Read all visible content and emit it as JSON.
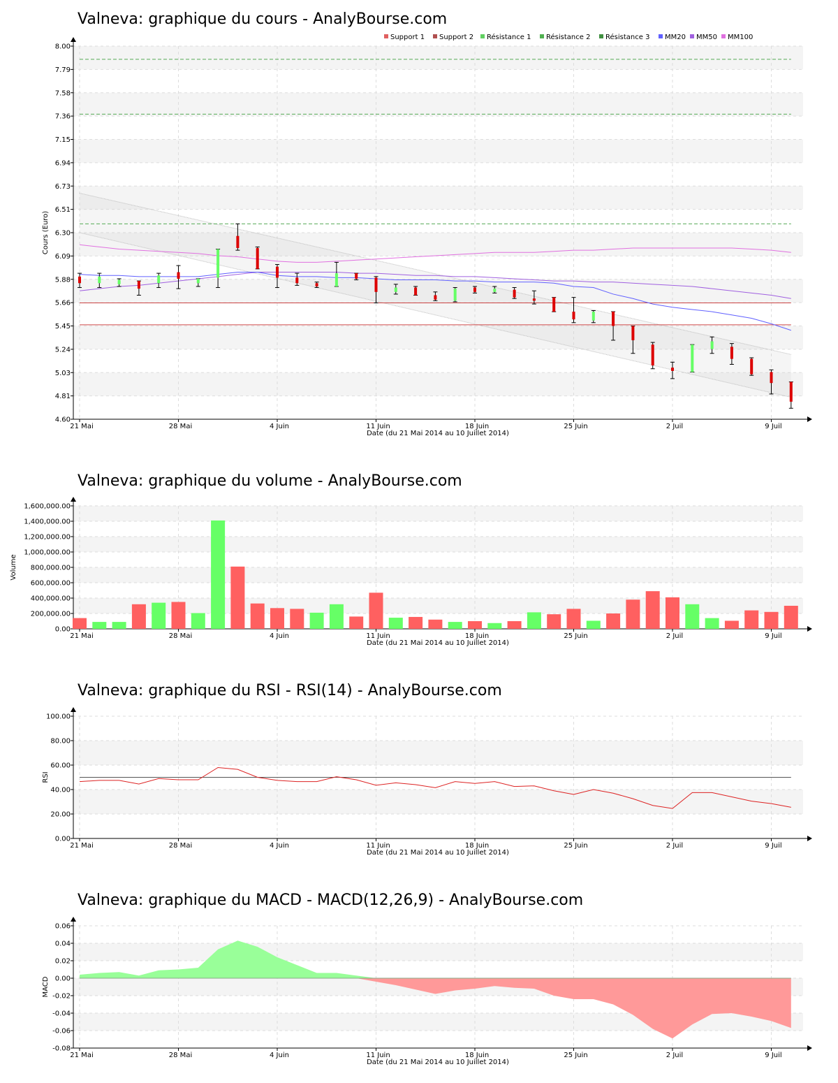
{
  "chart_data": [
    {
      "id": "price",
      "type": "candlestick",
      "title": "Valneva: graphique du cours - AnalyBourse.com",
      "ylabel": "Cours (Euro)",
      "xlabel": "Date (du 21 Mai 2014 au 10 Juillet 2014)",
      "ylim": [
        4.6,
        8.0
      ],
      "yticks": [
        "4.60",
        "4.81",
        "5.03",
        "5.24",
        "5.45",
        "5.66",
        "5.88",
        "6.09",
        "6.30",
        "6.51",
        "6.73",
        "6.94",
        "7.15",
        "7.36",
        "7.58",
        "7.79",
        "8.00"
      ],
      "xticks": [
        {
          "label": "21 Mai",
          "i": 0
        },
        {
          "label": "28 Mai",
          "i": 5
        },
        {
          "label": "4 Juin",
          "i": 10
        },
        {
          "label": "11 Juin",
          "i": 15
        },
        {
          "label": "18 Juin",
          "i": 20
        },
        {
          "label": "25 Juin",
          "i": 25
        },
        {
          "label": "2 Juil",
          "i": 30
        },
        {
          "label": "9 Juil",
          "i": 35
        }
      ],
      "grid": true,
      "legend_position": "top-right",
      "legend": [
        {
          "name": "Support 1",
          "color": "#e06060"
        },
        {
          "name": "Support 2",
          "color": "#b05050"
        },
        {
          "name": "Résistance 1",
          "color": "#60d060"
        },
        {
          "name": "Résistance 2",
          "color": "#50b050"
        },
        {
          "name": "Résistance 3",
          "color": "#409040"
        },
        {
          "name": "MM20",
          "color": "#6060ff"
        },
        {
          "name": "MM50",
          "color": "#a060e0"
        },
        {
          "name": "MM100",
          "color": "#e070e0"
        }
      ],
      "candles": [
        {
          "o": 5.9,
          "c": 5.84,
          "h": 5.93,
          "l": 5.8
        },
        {
          "o": 5.84,
          "c": 5.9,
          "h": 5.93,
          "l": 5.8
        },
        {
          "o": 5.83,
          "c": 5.87,
          "h": 5.88,
          "l": 5.81
        },
        {
          "o": 5.86,
          "c": 5.79,
          "h": 5.86,
          "l": 5.73
        },
        {
          "o": 5.84,
          "c": 5.91,
          "h": 5.93,
          "l": 5.8
        },
        {
          "o": 5.94,
          "c": 5.88,
          "h": 6.0,
          "l": 5.79
        },
        {
          "o": 5.84,
          "c": 5.88,
          "h": 5.88,
          "l": 5.81
        },
        {
          "o": 5.89,
          "c": 6.15,
          "h": 6.15,
          "l": 5.8
        },
        {
          "o": 6.27,
          "c": 6.16,
          "h": 6.38,
          "l": 6.14
        },
        {
          "o": 6.16,
          "c": 5.97,
          "h": 6.17,
          "l": 5.97
        },
        {
          "o": 5.99,
          "c": 5.89,
          "h": 6.01,
          "l": 5.8
        },
        {
          "o": 5.89,
          "c": 5.84,
          "h": 5.93,
          "l": 5.82
        },
        {
          "o": 5.84,
          "c": 5.81,
          "h": 5.85,
          "l": 5.8
        },
        {
          "o": 5.81,
          "c": 5.93,
          "h": 6.03,
          "l": 5.81
        },
        {
          "o": 5.93,
          "c": 5.88,
          "h": 5.93,
          "l": 5.87
        },
        {
          "o": 5.89,
          "c": 5.76,
          "h": 5.9,
          "l": 5.66
        },
        {
          "o": 5.76,
          "c": 5.8,
          "h": 5.83,
          "l": 5.74
        },
        {
          "o": 5.8,
          "c": 5.73,
          "h": 5.81,
          "l": 5.73
        },
        {
          "o": 5.73,
          "c": 5.69,
          "h": 5.76,
          "l": 5.68
        },
        {
          "o": 5.68,
          "c": 5.79,
          "h": 5.8,
          "l": 5.67
        },
        {
          "o": 5.8,
          "c": 5.76,
          "h": 5.81,
          "l": 5.75
        },
        {
          "o": 5.76,
          "c": 5.79,
          "h": 5.81,
          "l": 5.75
        },
        {
          "o": 5.78,
          "c": 5.71,
          "h": 5.8,
          "l": 5.7
        },
        {
          "o": 5.7,
          "c": 5.68,
          "h": 5.77,
          "l": 5.65
        },
        {
          "o": 5.71,
          "c": 5.58,
          "h": 5.71,
          "l": 5.58
        },
        {
          "o": 5.58,
          "c": 5.51,
          "h": 5.71,
          "l": 5.48
        },
        {
          "o": 5.5,
          "c": 5.58,
          "h": 5.59,
          "l": 5.48
        },
        {
          "o": 5.58,
          "c": 5.45,
          "h": 5.58,
          "l": 5.32
        },
        {
          "o": 5.45,
          "c": 5.32,
          "h": 5.45,
          "l": 5.2
        },
        {
          "o": 5.28,
          "c": 5.09,
          "h": 5.3,
          "l": 5.06
        },
        {
          "o": 5.07,
          "c": 5.04,
          "h": 5.12,
          "l": 4.97
        },
        {
          "o": 5.03,
          "c": 5.28,
          "h": 5.28,
          "l": 5.03
        },
        {
          "o": 5.24,
          "c": 5.31,
          "h": 5.35,
          "l": 5.2
        },
        {
          "o": 5.26,
          "c": 5.15,
          "h": 5.29,
          "l": 5.1
        },
        {
          "o": 5.15,
          "c": 5.01,
          "h": 5.16,
          "l": 5.0
        },
        {
          "o": 5.03,
          "c": 4.93,
          "h": 5.05,
          "l": 4.83
        },
        {
          "o": 4.94,
          "c": 4.76,
          "h": 4.94,
          "l": 4.7
        }
      ],
      "resistances": [
        7.88,
        7.38,
        6.38
      ],
      "supports": [
        5.66,
        5.46
      ],
      "channel": {
        "upper": [
          6.66,
          5.19
        ],
        "lower": [
          6.3,
          4.8
        ]
      },
      "mm20": [
        5.92,
        5.91,
        5.91,
        5.9,
        5.9,
        5.9,
        5.9,
        5.92,
        5.94,
        5.94,
        5.91,
        5.9,
        5.9,
        5.89,
        5.89,
        5.88,
        5.87,
        5.87,
        5.87,
        5.86,
        5.86,
        5.85,
        5.85,
        5.85,
        5.84,
        5.81,
        5.8,
        5.74,
        5.7,
        5.65,
        5.62,
        5.6,
        5.58,
        5.55,
        5.52,
        5.47,
        5.41
      ],
      "mm50": [
        5.77,
        5.79,
        5.81,
        5.82,
        5.84,
        5.86,
        5.88,
        5.9,
        5.92,
        5.94,
        5.94,
        5.94,
        5.94,
        5.94,
        5.93,
        5.93,
        5.92,
        5.91,
        5.91,
        5.9,
        5.9,
        5.89,
        5.88,
        5.87,
        5.86,
        5.86,
        5.85,
        5.85,
        5.84,
        5.83,
        5.82,
        5.81,
        5.79,
        5.77,
        5.75,
        5.73,
        5.7
      ],
      "mm100": [
        6.19,
        6.17,
        6.15,
        6.14,
        6.13,
        6.12,
        6.11,
        6.09,
        6.08,
        6.06,
        6.04,
        6.03,
        6.03,
        6.04,
        6.05,
        6.06,
        6.07,
        6.08,
        6.09,
        6.1,
        6.11,
        6.12,
        6.12,
        6.12,
        6.13,
        6.14,
        6.14,
        6.15,
        6.16,
        6.16,
        6.16,
        6.16,
        6.16,
        6.16,
        6.15,
        6.14,
        6.12
      ],
      "up_color": "#66ff66",
      "down_color": "#dd0000"
    },
    {
      "id": "volume",
      "type": "bar",
      "title": "Valneva: graphique du volume - AnalyBourse.com",
      "ylabel": "Volume",
      "xlabel": "Date (du 21 Mai 2014 au 10 Juillet 2014)",
      "ylim": [
        0,
        1600000
      ],
      "yticks": [
        "0.00",
        "200,000.00",
        "400,000.00",
        "600,000.00",
        "800,000.00",
        "1,000,000.00",
        "1,200,000.00",
        "1,400,000.00",
        "1,600,000.00"
      ],
      "xticks": [
        {
          "label": "21 Mai",
          "i": 0
        },
        {
          "label": "28 Mai",
          "i": 5
        },
        {
          "label": "4 Juin",
          "i": 10
        },
        {
          "label": "11 Juin",
          "i": 15
        },
        {
          "label": "18 Juin",
          "i": 20
        },
        {
          "label": "25 Juin",
          "i": 25
        },
        {
          "label": "2 Juil",
          "i": 30
        },
        {
          "label": "9 Juil",
          "i": 35
        }
      ],
      "grid": true,
      "values": [
        140000,
        90000,
        90000,
        320000,
        340000,
        350000,
        205000,
        1410000,
        810000,
        330000,
        270000,
        260000,
        210000,
        320000,
        160000,
        470000,
        145000,
        155000,
        120000,
        90000,
        100000,
        75000,
        100000,
        215000,
        190000,
        260000,
        105000,
        200000,
        380000,
        490000,
        410000,
        320000,
        140000,
        105000,
        240000,
        220000,
        300000
      ],
      "colors": [
        "d",
        "u",
        "u",
        "d",
        "u",
        "d",
        "u",
        "u",
        "d",
        "d",
        "d",
        "d",
        "u",
        "u",
        "d",
        "d",
        "u",
        "d",
        "d",
        "u",
        "d",
        "u",
        "d",
        "u",
        "d",
        "d",
        "u",
        "d",
        "d",
        "d",
        "d",
        "u",
        "u",
        "d",
        "d",
        "d",
        "d"
      ],
      "up_color": "#66ff66",
      "down_color": "#ff6060"
    },
    {
      "id": "rsi",
      "type": "line",
      "title": "Valneva: graphique du RSI - RSI(14) - AnalyBourse.com",
      "ylabel": "RSI",
      "xlabel": "Date (du 21 Mai 2014 au 10 Juillet 2014)",
      "ylim": [
        0,
        100
      ],
      "yticks": [
        "0.00",
        "20.00",
        "40.00",
        "60.00",
        "80.00",
        "100.00"
      ],
      "xticks": [
        {
          "label": "21 Mai",
          "i": 0
        },
        {
          "label": "28 Mai",
          "i": 5
        },
        {
          "label": "4 Juin",
          "i": 10
        },
        {
          "label": "11 Juin",
          "i": 15
        },
        {
          "label": "18 Juin",
          "i": 20
        },
        {
          "label": "25 Juin",
          "i": 25
        },
        {
          "label": "2 Juil",
          "i": 30
        },
        {
          "label": "9 Juil",
          "i": 35
        }
      ],
      "grid": true,
      "reference": 50,
      "values": [
        46.5,
        47.5,
        47.5,
        44.5,
        49,
        48,
        48,
        58,
        56.5,
        50,
        47.5,
        46.5,
        46.5,
        50.5,
        48,
        43.5,
        45.5,
        44,
        41.5,
        46.5,
        45,
        46.5,
        42.5,
        43,
        39,
        36,
        40,
        37,
        32.5,
        27,
        24.5,
        37.5,
        37.5,
        34,
        30.5,
        28.5,
        25.5
      ],
      "color": "#dd2222"
    },
    {
      "id": "macd",
      "type": "area",
      "title": "Valneva: graphique du MACD - MACD(12,26,9) - AnalyBourse.com",
      "ylabel": "MACD",
      "xlabel": "Date (du 21 Mai 2014 au 10 Juillet 2014)",
      "ylim": [
        -0.08,
        0.06
      ],
      "yticks": [
        "-0.08",
        "-0.06",
        "-0.04",
        "-0.02",
        "0.00",
        "0.02",
        "0.04",
        "0.06"
      ],
      "xticks": [
        {
          "label": "21 Mai",
          "i": 0
        },
        {
          "label": "28 Mai",
          "i": 5
        },
        {
          "label": "4 Juin",
          "i": 10
        },
        {
          "label": "11 Juin",
          "i": 15
        },
        {
          "label": "18 Juin",
          "i": 20
        },
        {
          "label": "25 Juin",
          "i": 25
        },
        {
          "label": "2 Juil",
          "i": 30
        },
        {
          "label": "9 Juil",
          "i": 35
        }
      ],
      "grid": true,
      "values": [
        0.004,
        0.006,
        0.007,
        0.003,
        0.009,
        0.01,
        0.012,
        0.033,
        0.043,
        0.036,
        0.024,
        0.015,
        0.006,
        0.006,
        0.003,
        -0.004,
        -0.008,
        -0.013,
        -0.018,
        -0.014,
        -0.012,
        -0.009,
        -0.011,
        -0.012,
        -0.02,
        -0.024,
        -0.024,
        -0.03,
        -0.042,
        -0.058,
        -0.069,
        -0.053,
        -0.041,
        -0.04,
        -0.044,
        -0.049,
        -0.057
      ],
      "pos_color": "#99ff99",
      "neg_color": "#ff9999"
    }
  ]
}
